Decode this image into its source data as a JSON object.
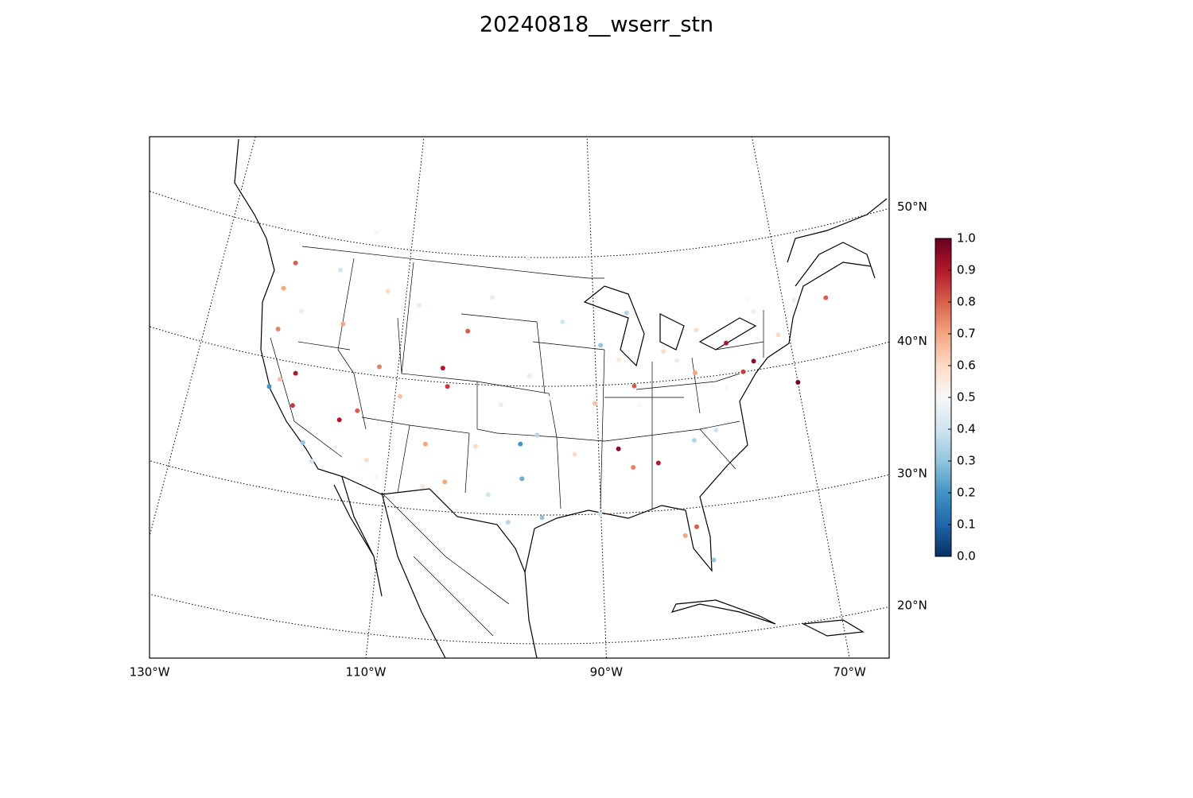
{
  "chart_data": {
    "type": "map",
    "title": "20240818__wserr_stn",
    "lon": [
      -122.3,
      -123,
      -122.4,
      -121.5,
      -118.2,
      -117.1,
      -119.8,
      -115.1,
      -112.0,
      -111.9,
      -116.2,
      -112,
      -108.5,
      -104.9,
      -106.6,
      -105.5,
      -100.8,
      -96.7,
      -97.5,
      -97.3,
      -95.4,
      -98.5,
      -101.8,
      -93.3,
      -90.2,
      -87.6,
      -86.2,
      -84.4,
      -86.8,
      -90.1,
      -81.7,
      -83.0,
      -80.0,
      -77.0,
      -75.2,
      -74.0,
      -71.1,
      -76.5,
      -80.8,
      -81.4,
      -80.2,
      -82.5,
      -89.4,
      -94.6,
      -99.5,
      -103.2,
      -109.5,
      -120.7,
      -117.4,
      -113.5,
      -104.5,
      -88.1,
      -85.8,
      -78.6,
      -73.2,
      -68.8,
      -92.3,
      -95.9,
      -106.5,
      -100.4,
      -120.1,
      -122.7,
      -70.0,
      -65.5,
      -110.9,
      -97.0,
      -114.1,
      -79.4,
      -73.6,
      -86.5
    ],
    "lat": [
      47.6,
      45.5,
      37.8,
      38.5,
      34.0,
      32.7,
      36.7,
      36.2,
      33.4,
      40.7,
      43.6,
      46.6,
      45.8,
      39.7,
      35.1,
      41.1,
      46.8,
      40.8,
      35.5,
      32.8,
      29.8,
      29.4,
      35.2,
      45.0,
      38.6,
      41.9,
      39.8,
      33.7,
      33.5,
      30.0,
      41.5,
      42.3,
      40.4,
      38.9,
      40.0,
      40.7,
      42.4,
      42.4,
      35.2,
      28.5,
      25.8,
      27.9,
      43.1,
      39.1,
      38.5,
      44.1,
      38.6,
      44.0,
      47.7,
      37.1,
      32.3,
      35.0,
      38.3,
      35.8,
      44.5,
      44.8,
      34.7,
      36.2,
      31.8,
      31.5,
      39.2,
      42.3,
      38.5,
      44.5,
      32.2,
      49.9,
      51.0,
      43.7,
      45.5,
      45.5
    ],
    "values": [
      0.8,
      0.7,
      0.2,
      0.65,
      0.3,
      0.4,
      0.85,
      0.9,
      0.6,
      0.75,
      0.7,
      0.6,
      0.55,
      0.85,
      0.7,
      0.9,
      0.45,
      0.55,
      0.2,
      0.25,
      0.3,
      0.35,
      0.6,
      0.4,
      0.65,
      0.55,
      0.8,
      0.9,
      0.75,
      0.4,
      0.45,
      0.6,
      0.7,
      0.5,
      0.85,
      0.95,
      0.6,
      0.9,
      0.35,
      0.8,
      0.3,
      0.7,
      0.3,
      0.5,
      0.45,
      0.8,
      0.65,
      0.55,
      0.4,
      0.8,
      0.7,
      0.95,
      0.5,
      0.4,
      0.55,
      0.45,
      0.6,
      0.35,
      0.55,
      0.4,
      0.9,
      0.75,
      0.98,
      0.8,
      0.5,
      0.45,
      0.5,
      0.6,
      0.5,
      0.35
    ],
    "clim": [
      0,
      1
    ],
    "cticks": [
      {
        "value": 0,
        "label": "0.0"
      },
      {
        "value": 0.1,
        "label": "0.1"
      },
      {
        "value": 0.2,
        "label": "0.2"
      },
      {
        "value": 0.3,
        "label": "0.3"
      },
      {
        "value": 0.4,
        "label": "0.4"
      },
      {
        "value": 0.5,
        "label": "0.5"
      },
      {
        "value": 0.6,
        "label": "0.6"
      },
      {
        "value": 0.7,
        "label": "0.7"
      },
      {
        "value": 0.8,
        "label": "0.8"
      },
      {
        "value": 0.9,
        "label": "0.9"
      },
      {
        "value": 1,
        "label": "1.0"
      }
    ],
    "latticks": [
      {
        "value": 20,
        "label": "20°N"
      },
      {
        "value": 30,
        "label": "30°N"
      },
      {
        "value": 40,
        "label": "40°N"
      },
      {
        "value": 50,
        "label": "50°N"
      }
    ],
    "lonticks": [
      {
        "value": -130,
        "label": "130°W"
      },
      {
        "value": -110,
        "label": "110°W"
      },
      {
        "value": -90,
        "label": "90°W"
      },
      {
        "value": -70,
        "label": "70°W"
      }
    ]
  }
}
